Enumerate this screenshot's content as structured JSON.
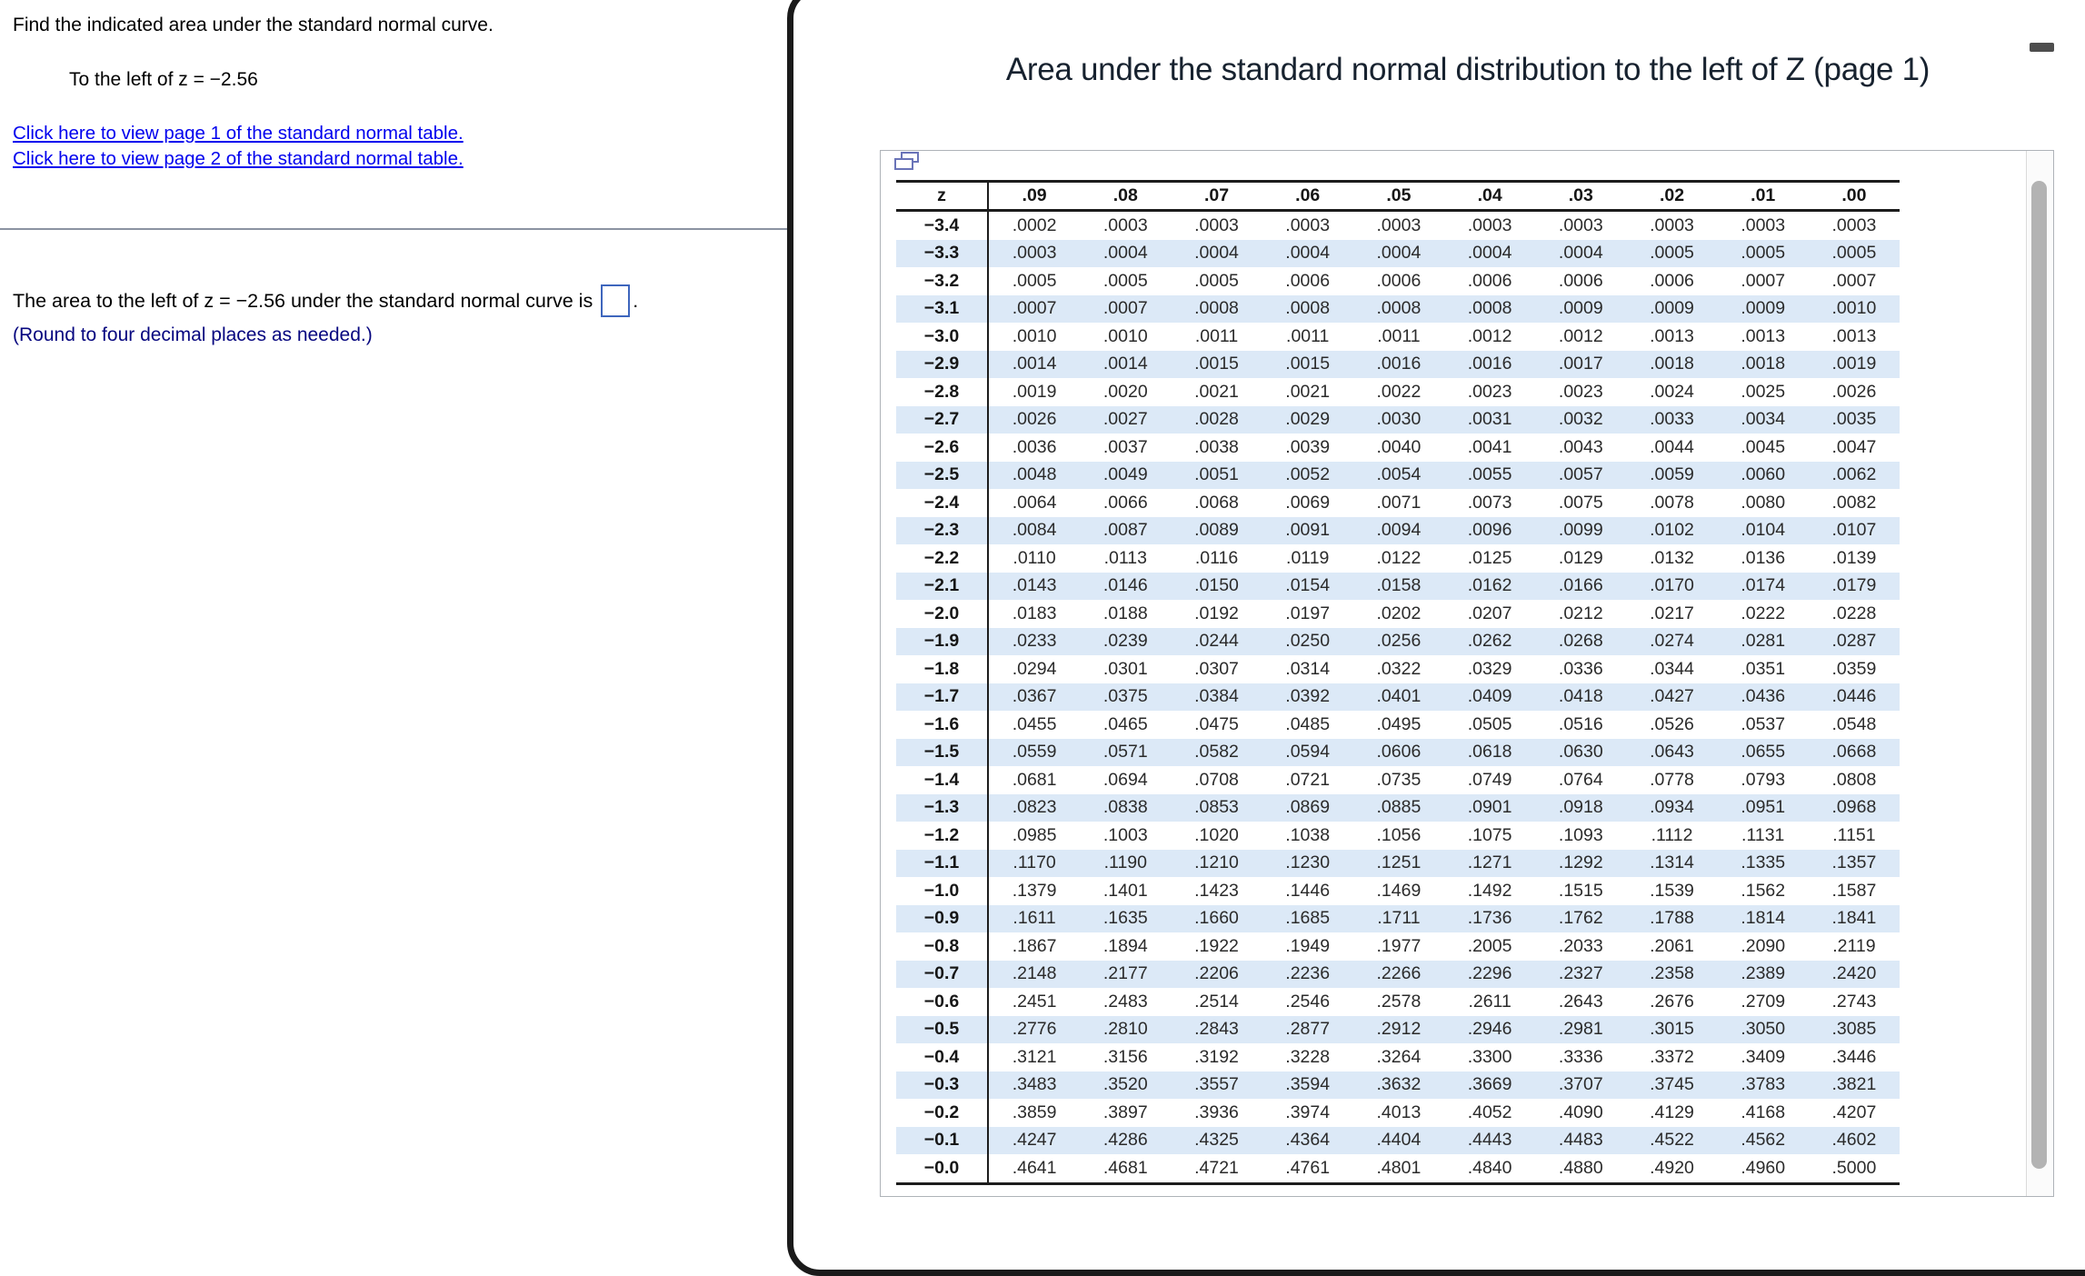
{
  "colors": {
    "link_blue": "#0000ee",
    "note_navy": "#06067f",
    "answer_box_border": "#3e66bd",
    "alt_row_blue": "#dce9f7",
    "title_navy": "#17222f",
    "frame_black": "#1a1a1a",
    "icon_periwinkle": "#6a74b8"
  },
  "left_panel": {
    "question": "Find the indicated area under the standard normal curve.",
    "condition": "To the left of z = −2.56",
    "links": [
      "Click here to view page 1 of the standard normal table.",
      "Click here to view page 2 of the standard normal table."
    ],
    "answer_prefix": "The area to the left of z = −2.56 under the standard normal curve is",
    "answer_value": "",
    "answer_suffix": ".",
    "round_note": "(Round to four decimal places as needed.)"
  },
  "popup": {
    "title": "Area under the standard normal distribution to the left of Z (page 1)",
    "icons": {
      "minimize": "minimize-dash",
      "pages": "restore-window"
    },
    "table": {
      "col_headers": [
        "z",
        ".09",
        ".08",
        ".07",
        ".06",
        ".05",
        ".04",
        ".03",
        ".02",
        ".01",
        ".00"
      ],
      "rows": [
        {
          "z": "−3.4",
          "values": [
            ".0002",
            ".0003",
            ".0003",
            ".0003",
            ".0003",
            ".0003",
            ".0003",
            ".0003",
            ".0003",
            ".0003"
          ]
        },
        {
          "z": "−3.3",
          "values": [
            ".0003",
            ".0004",
            ".0004",
            ".0004",
            ".0004",
            ".0004",
            ".0004",
            ".0005",
            ".0005",
            ".0005"
          ]
        },
        {
          "z": "−3.2",
          "values": [
            ".0005",
            ".0005",
            ".0005",
            ".0006",
            ".0006",
            ".0006",
            ".0006",
            ".0006",
            ".0007",
            ".0007"
          ]
        },
        {
          "z": "−3.1",
          "values": [
            ".0007",
            ".0007",
            ".0008",
            ".0008",
            ".0008",
            ".0008",
            ".0009",
            ".0009",
            ".0009",
            ".0010"
          ]
        },
        {
          "z": "−3.0",
          "values": [
            ".0010",
            ".0010",
            ".0011",
            ".0011",
            ".0011",
            ".0012",
            ".0012",
            ".0013",
            ".0013",
            ".0013"
          ]
        },
        {
          "z": "−2.9",
          "values": [
            ".0014",
            ".0014",
            ".0015",
            ".0015",
            ".0016",
            ".0016",
            ".0017",
            ".0018",
            ".0018",
            ".0019"
          ]
        },
        {
          "z": "−2.8",
          "values": [
            ".0019",
            ".0020",
            ".0021",
            ".0021",
            ".0022",
            ".0023",
            ".0023",
            ".0024",
            ".0025",
            ".0026"
          ]
        },
        {
          "z": "−2.7",
          "values": [
            ".0026",
            ".0027",
            ".0028",
            ".0029",
            ".0030",
            ".0031",
            ".0032",
            ".0033",
            ".0034",
            ".0035"
          ]
        },
        {
          "z": "−2.6",
          "values": [
            ".0036",
            ".0037",
            ".0038",
            ".0039",
            ".0040",
            ".0041",
            ".0043",
            ".0044",
            ".0045",
            ".0047"
          ]
        },
        {
          "z": "−2.5",
          "values": [
            ".0048",
            ".0049",
            ".0051",
            ".0052",
            ".0054",
            ".0055",
            ".0057",
            ".0059",
            ".0060",
            ".0062"
          ]
        },
        {
          "z": "−2.4",
          "values": [
            ".0064",
            ".0066",
            ".0068",
            ".0069",
            ".0071",
            ".0073",
            ".0075",
            ".0078",
            ".0080",
            ".0082"
          ]
        },
        {
          "z": "−2.3",
          "values": [
            ".0084",
            ".0087",
            ".0089",
            ".0091",
            ".0094",
            ".0096",
            ".0099",
            ".0102",
            ".0104",
            ".0107"
          ]
        },
        {
          "z": "−2.2",
          "values": [
            ".0110",
            ".0113",
            ".0116",
            ".0119",
            ".0122",
            ".0125",
            ".0129",
            ".0132",
            ".0136",
            ".0139"
          ]
        },
        {
          "z": "−2.1",
          "values": [
            ".0143",
            ".0146",
            ".0150",
            ".0154",
            ".0158",
            ".0162",
            ".0166",
            ".0170",
            ".0174",
            ".0179"
          ]
        },
        {
          "z": "−2.0",
          "values": [
            ".0183",
            ".0188",
            ".0192",
            ".0197",
            ".0202",
            ".0207",
            ".0212",
            ".0217",
            ".0222",
            ".0228"
          ]
        },
        {
          "z": "−1.9",
          "values": [
            ".0233",
            ".0239",
            ".0244",
            ".0250",
            ".0256",
            ".0262",
            ".0268",
            ".0274",
            ".0281",
            ".0287"
          ]
        },
        {
          "z": "−1.8",
          "values": [
            ".0294",
            ".0301",
            ".0307",
            ".0314",
            ".0322",
            ".0329",
            ".0336",
            ".0344",
            ".0351",
            ".0359"
          ]
        },
        {
          "z": "−1.7",
          "values": [
            ".0367",
            ".0375",
            ".0384",
            ".0392",
            ".0401",
            ".0409",
            ".0418",
            ".0427",
            ".0436",
            ".0446"
          ]
        },
        {
          "z": "−1.6",
          "values": [
            ".0455",
            ".0465",
            ".0475",
            ".0485",
            ".0495",
            ".0505",
            ".0516",
            ".0526",
            ".0537",
            ".0548"
          ]
        },
        {
          "z": "−1.5",
          "values": [
            ".0559",
            ".0571",
            ".0582",
            ".0594",
            ".0606",
            ".0618",
            ".0630",
            ".0643",
            ".0655",
            ".0668"
          ]
        },
        {
          "z": "−1.4",
          "values": [
            ".0681",
            ".0694",
            ".0708",
            ".0721",
            ".0735",
            ".0749",
            ".0764",
            ".0778",
            ".0793",
            ".0808"
          ]
        },
        {
          "z": "−1.3",
          "values": [
            ".0823",
            ".0838",
            ".0853",
            ".0869",
            ".0885",
            ".0901",
            ".0918",
            ".0934",
            ".0951",
            ".0968"
          ]
        },
        {
          "z": "−1.2",
          "values": [
            ".0985",
            ".1003",
            ".1020",
            ".1038",
            ".1056",
            ".1075",
            ".1093",
            ".1112",
            ".1131",
            ".1151"
          ]
        },
        {
          "z": "−1.1",
          "values": [
            ".1170",
            ".1190",
            ".1210",
            ".1230",
            ".1251",
            ".1271",
            ".1292",
            ".1314",
            ".1335",
            ".1357"
          ]
        },
        {
          "z": "−1.0",
          "values": [
            ".1379",
            ".1401",
            ".1423",
            ".1446",
            ".1469",
            ".1492",
            ".1515",
            ".1539",
            ".1562",
            ".1587"
          ]
        },
        {
          "z": "−0.9",
          "values": [
            ".1611",
            ".1635",
            ".1660",
            ".1685",
            ".1711",
            ".1736",
            ".1762",
            ".1788",
            ".1814",
            ".1841"
          ]
        },
        {
          "z": "−0.8",
          "values": [
            ".1867",
            ".1894",
            ".1922",
            ".1949",
            ".1977",
            ".2005",
            ".2033",
            ".2061",
            ".2090",
            ".2119"
          ]
        },
        {
          "z": "−0.7",
          "values": [
            ".2148",
            ".2177",
            ".2206",
            ".2236",
            ".2266",
            ".2296",
            ".2327",
            ".2358",
            ".2389",
            ".2420"
          ]
        },
        {
          "z": "−0.6",
          "values": [
            ".2451",
            ".2483",
            ".2514",
            ".2546",
            ".2578",
            ".2611",
            ".2643",
            ".2676",
            ".2709",
            ".2743"
          ]
        },
        {
          "z": "−0.5",
          "values": [
            ".2776",
            ".2810",
            ".2843",
            ".2877",
            ".2912",
            ".2946",
            ".2981",
            ".3015",
            ".3050",
            ".3085"
          ]
        },
        {
          "z": "−0.4",
          "values": [
            ".3121",
            ".3156",
            ".3192",
            ".3228",
            ".3264",
            ".3300",
            ".3336",
            ".3372",
            ".3409",
            ".3446"
          ]
        },
        {
          "z": "−0.3",
          "values": [
            ".3483",
            ".3520",
            ".3557",
            ".3594",
            ".3632",
            ".3669",
            ".3707",
            ".3745",
            ".3783",
            ".3821"
          ]
        },
        {
          "z": "−0.2",
          "values": [
            ".3859",
            ".3897",
            ".3936",
            ".3974",
            ".4013",
            ".4052",
            ".4090",
            ".4129",
            ".4168",
            ".4207"
          ]
        },
        {
          "z": "−0.1",
          "values": [
            ".4247",
            ".4286",
            ".4325",
            ".4364",
            ".4404",
            ".4443",
            ".4483",
            ".4522",
            ".4562",
            ".4602"
          ]
        },
        {
          "z": "−0.0",
          "values": [
            ".4641",
            ".4681",
            ".4721",
            ".4761",
            ".4801",
            ".4840",
            ".4880",
            ".4920",
            ".4960",
            ".5000"
          ]
        }
      ]
    }
  }
}
